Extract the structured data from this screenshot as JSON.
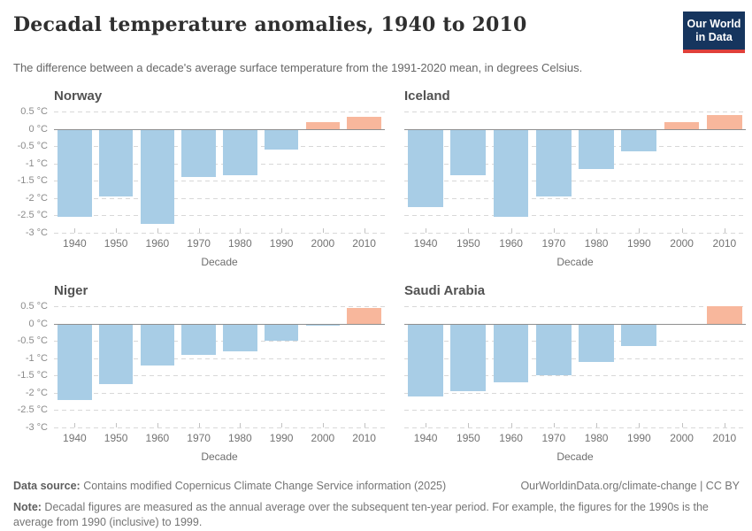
{
  "header": {
    "title": "Decadal temperature anomalies, 1940 to 2010",
    "subtitle": "The difference between a decade's average surface temperature from the 1991-2020 mean, in degrees Celsius.",
    "logo": {
      "line1": "Our World",
      "line2": "in Data"
    }
  },
  "axis": {
    "ytick_values": [
      0.5,
      0,
      -0.5,
      -1,
      -1.5,
      -2,
      -2.5,
      -3
    ],
    "ytick_labels": [
      "0.5 °C",
      "0 °C",
      "-0.5 °C",
      "-1 °C",
      "-1.5 °C",
      "-2 °C",
      "-2.5 °C",
      "-3 °C"
    ],
    "xlabel": "Decade"
  },
  "chart_data": [
    {
      "type": "bar",
      "title": "Norway",
      "categories": [
        "1940",
        "1950",
        "1960",
        "1970",
        "1980",
        "1990",
        "2000",
        "2010"
      ],
      "values": [
        -2.55,
        -1.95,
        -2.75,
        -1.4,
        -1.35,
        -0.6,
        0.2,
        0.35
      ],
      "xlabel": "Decade",
      "ylabel": "°C",
      "ylim": [
        -3,
        0.5
      ],
      "grid": true,
      "show_y_labels": true
    },
    {
      "type": "bar",
      "title": "Iceland",
      "categories": [
        "1940",
        "1950",
        "1960",
        "1970",
        "1980",
        "1990",
        "2000",
        "2010"
      ],
      "values": [
        -2.25,
        -1.35,
        -2.55,
        -1.95,
        -1.15,
        -0.65,
        0.2,
        0.4
      ],
      "xlabel": "Decade",
      "ylabel": "°C",
      "ylim": [
        -3,
        0.5
      ],
      "grid": true,
      "show_y_labels": false
    },
    {
      "type": "bar",
      "title": "Niger",
      "categories": [
        "1940",
        "1950",
        "1960",
        "1970",
        "1980",
        "1990",
        "2000",
        "2010"
      ],
      "values": [
        -2.2,
        -1.75,
        -1.2,
        -0.9,
        -0.8,
        -0.5,
        -0.05,
        0.45
      ],
      "xlabel": "Decade",
      "ylabel": "°C",
      "ylim": [
        -3,
        0.5
      ],
      "grid": true,
      "show_y_labels": true
    },
    {
      "type": "bar",
      "title": "Saudi Arabia",
      "categories": [
        "1940",
        "1950",
        "1960",
        "1970",
        "1980",
        "1990",
        "2000",
        "2010"
      ],
      "values": [
        -2.1,
        -1.95,
        -1.7,
        -1.5,
        -1.1,
        -0.65,
        -0.02,
        0.5
      ],
      "xlabel": "Decade",
      "ylabel": "°C",
      "ylim": [
        -3,
        0.5
      ],
      "grid": true,
      "show_y_labels": false
    }
  ],
  "colors": {
    "bar_negative": "#a8cde6",
    "bar_positive": "#f8b79c",
    "gridline": "#d8d8d8",
    "zero_line": "#8f8f8f",
    "logo_bg": "#16355e",
    "logo_accent": "#e0403a"
  },
  "footer": {
    "source_label": "Data source:",
    "source_text": " Contains modified Copernicus Climate Change Service information (2025)",
    "link": "OurWorldinData.org/climate-change | CC BY",
    "note_label": "Note:",
    "note_text": " Decadal figures are measured as the annual average over the subsequent ten-year period. For example, the figures for the 1990s is the average from 1990 (inclusive) to 1999."
  }
}
